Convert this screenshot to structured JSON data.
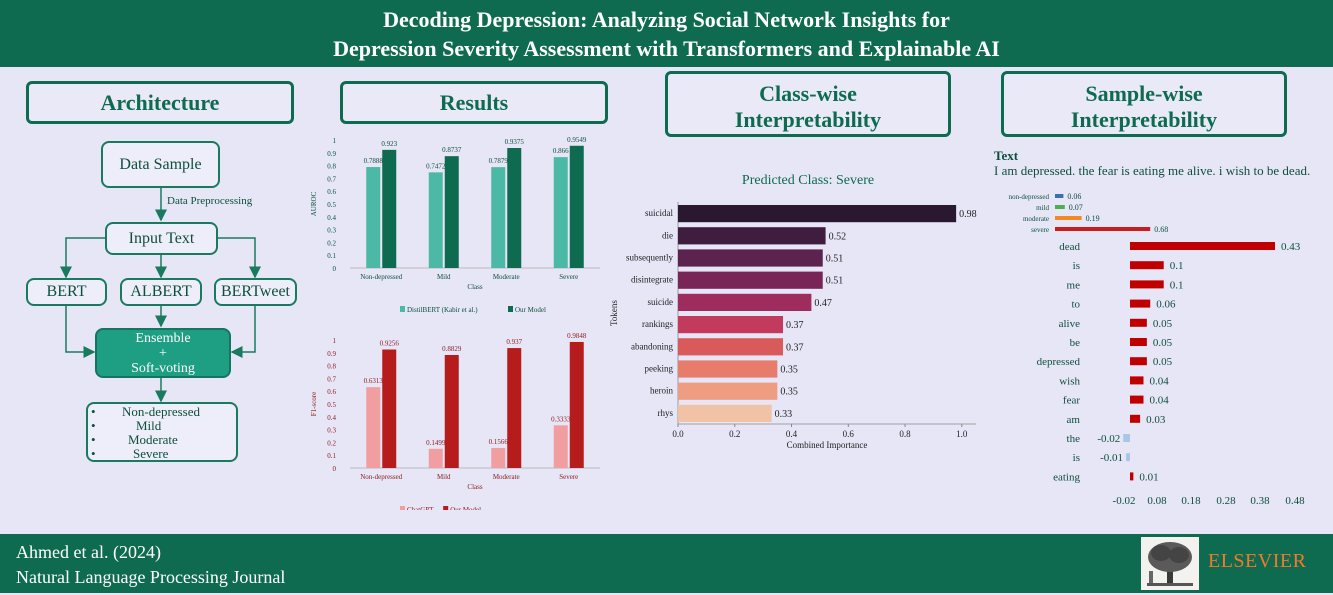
{
  "header": {
    "title_line1": "Decoding Depression: Analyzing Social Network Insights for",
    "title_line2": "Depression Severity Assessment with Transformers and Explainable AI"
  },
  "sections": {
    "architecture": "Architecture",
    "results": "Results",
    "classwise_line1": "Class-wise",
    "classwise_line2": "Interpretability",
    "samplewise_line1": "Sample-wise",
    "samplewise_line2": "Interpretability"
  },
  "architecture": {
    "data_sample": "Data Sample",
    "preprocessing": "Data Preprocessing",
    "input_text": "Input Text",
    "models": [
      "BERT",
      "ALBERT",
      "BERTweet"
    ],
    "ensemble_line1": "Ensemble",
    "ensemble_line2": "+",
    "ensemble_line3": "Soft-voting",
    "outputs": [
      "Non-depressed",
      "Mild",
      "Moderate",
      "Severe"
    ]
  },
  "chart_data": [
    {
      "type": "bar",
      "ylabel": "AUROC",
      "xlabel": "Class",
      "categories": [
        "Non-depressed",
        "Mild",
        "Moderate",
        "Severe"
      ],
      "ylim": [
        0,
        1
      ],
      "yticks": [
        "0",
        "0.1",
        "0.2",
        "0.3",
        "0.4",
        "0.5",
        "0.6",
        "0.7",
        "0.8",
        "0.9",
        "1"
      ],
      "series": [
        {
          "name": "DistilBERT (Kabir et al.)",
          "color": "#4cb8a6",
          "values": [
            0.7888,
            0.7472,
            0.7879,
            0.866
          ],
          "labels": [
            "0.7888",
            "0.7472",
            "0.7879",
            "0.866"
          ]
        },
        {
          "name": "Our Model",
          "color": "#0e6b4f",
          "values": [
            0.923,
            0.8737,
            0.9375,
            0.9549
          ],
          "labels": [
            "0.923",
            "0.8737",
            "0.9375",
            "0.9549"
          ]
        }
      ]
    },
    {
      "type": "bar",
      "ylabel": "F1-score",
      "xlabel": "Class",
      "categories": [
        "Non-depressed",
        "Mild",
        "Moderate",
        "Severe"
      ],
      "ylim": [
        0,
        1
      ],
      "yticks": [
        "0",
        "0.1",
        "0.2",
        "0.3",
        "0.4",
        "0.5",
        "0.6",
        "0.7",
        "0.8",
        "0.9",
        "1"
      ],
      "series": [
        {
          "name": "ChatGPT",
          "color": "#f09ea0",
          "values": [
            0.6313,
            0.1499,
            0.1566,
            0.3333
          ],
          "labels": [
            "0.6313",
            "0.1499",
            "0.1566",
            "0.3333"
          ]
        },
        {
          "name": "Our Model",
          "color": "#b71c1c",
          "values": [
            0.9256,
            0.8829,
            0.937,
            0.9848
          ],
          "labels": [
            "0.9256",
            "0.8829",
            "0.937",
            "0.9848"
          ]
        }
      ]
    },
    {
      "type": "bar",
      "orientation": "horizontal",
      "title": "Predicted Class: Severe",
      "xlabel": "Combined Importance",
      "ylabel": "Tokens",
      "xlim": [
        0,
        1.05
      ],
      "xticks": [
        "0.0",
        "0.2",
        "0.4",
        "0.6",
        "0.8",
        "1.0"
      ],
      "categories": [
        "suicidal",
        "die",
        "subsequently",
        "disintegrate",
        "suicide",
        "rankings",
        "abandoning",
        "peeking",
        "heroin",
        "rhys"
      ],
      "values": [
        0.98,
        0.52,
        0.51,
        0.51,
        0.47,
        0.37,
        0.37,
        0.35,
        0.35,
        0.33
      ],
      "labels": [
        "0.98",
        "0.52",
        "0.51",
        "0.51",
        "0.47",
        "0.37",
        "0.37",
        "0.35",
        "0.35",
        "0.33"
      ],
      "colors": [
        "#2a1730",
        "#3f1d3f",
        "#5c2350",
        "#7a2558",
        "#9e2d5e",
        "#c23b5c",
        "#d95a5b",
        "#e77c6c",
        "#ee9c82",
        "#f2c2a6"
      ]
    },
    {
      "type": "bar",
      "orientation": "horizontal",
      "title": "Text",
      "categories": [
        "non-depressed",
        "mild",
        "moderate",
        "severe"
      ],
      "values": [
        0.06,
        0.07,
        0.19,
        0.68
      ],
      "labels": [
        "0.06",
        "0.07",
        "0.19",
        "0.68"
      ],
      "colors": [
        "#3a6fb0",
        "#4caf50",
        "#f08a24",
        "#c81d1d"
      ]
    },
    {
      "type": "bar",
      "orientation": "horizontal",
      "xlim": [
        -0.02,
        0.48
      ],
      "xticks": [
        "-0.02",
        "0.08",
        "0.18",
        "0.28",
        "0.38",
        "0.48"
      ],
      "categories": [
        "dead",
        "is",
        "me",
        "to",
        "alive",
        "be",
        "depressed",
        "wish",
        "fear",
        "am",
        "the",
        "is",
        "eating"
      ],
      "values": [
        0.43,
        0.1,
        0.1,
        0.06,
        0.05,
        0.05,
        0.05,
        0.04,
        0.04,
        0.03,
        -0.02,
        -0.01,
        0.01
      ],
      "labels": [
        "0.43",
        "0.1",
        "0.1",
        "0.06",
        "0.05",
        "0.05",
        "0.05",
        "0.04",
        "0.04",
        "0.03",
        "-0.02",
        "-0.01",
        "0.01"
      ],
      "colors": {
        "positive": "#c00000",
        "negative": "#a9c6e6"
      }
    }
  ],
  "samplewise": {
    "text_title": "Text",
    "sentence": "I am depressed. the fear is eating me alive. i wish to be dead."
  },
  "footer": {
    "citation": "Ahmed et al. (2024)",
    "journal": "Natural Language Processing Journal",
    "publisher": "ELSEVIER"
  }
}
